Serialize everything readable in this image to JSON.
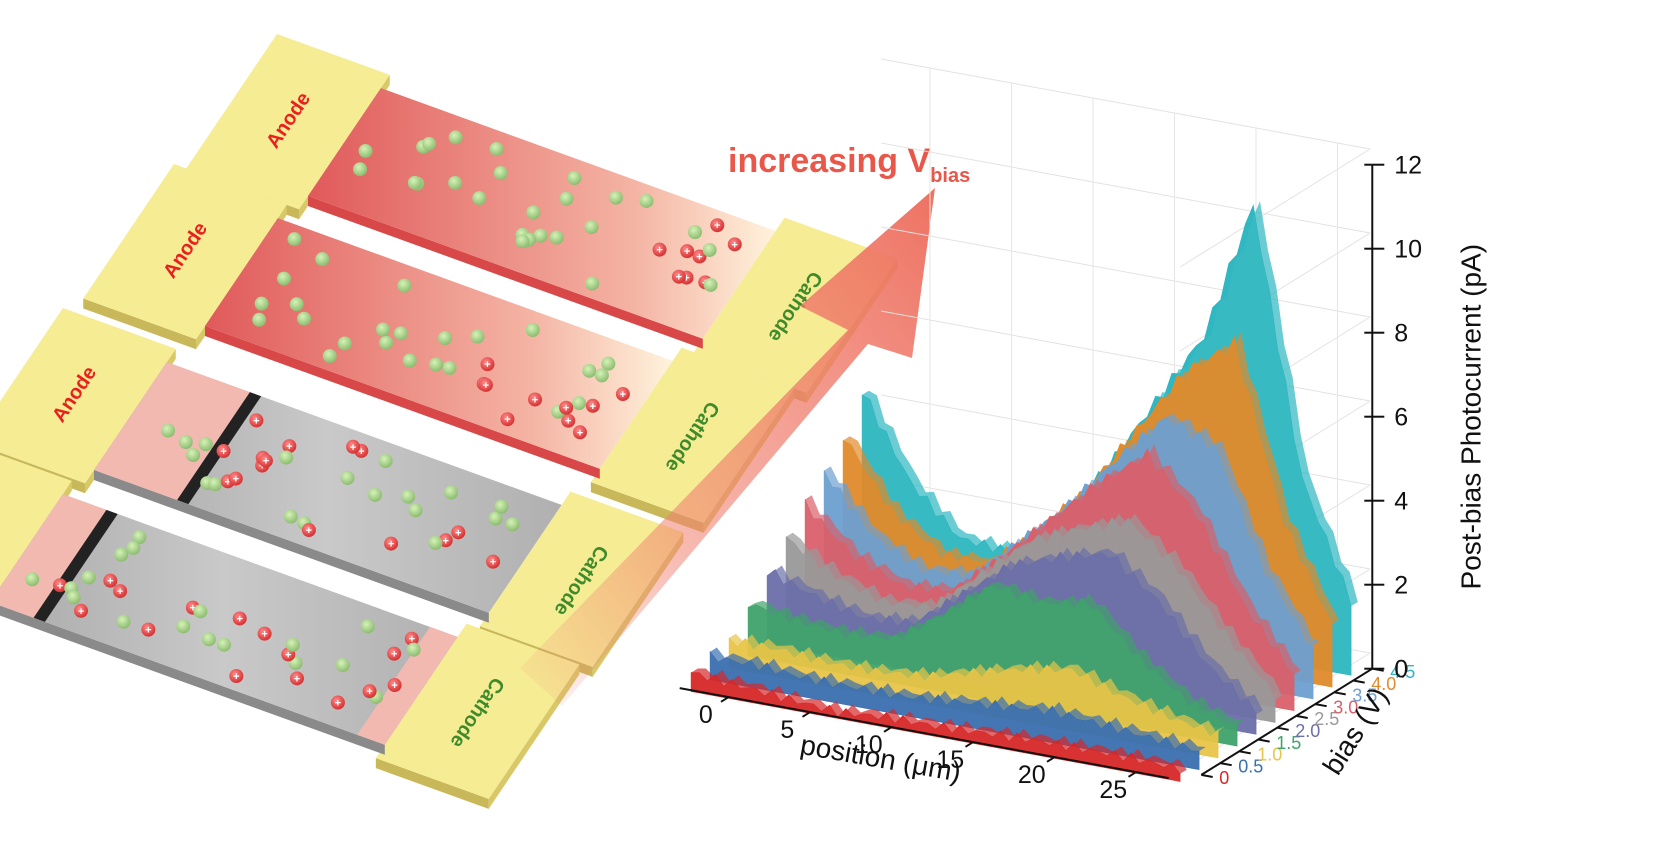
{
  "devices": [
    {
      "anode": "Anode",
      "cathode": "Cathode"
    },
    {
      "anode": "Anode",
      "cathode": "Cathode"
    },
    {
      "anode": "Anode",
      "cathode": "Cathode"
    },
    {
      "anode": "",
      "cathode": "Cathode"
    }
  ],
  "arrow": {
    "text": "increasing V",
    "subscript": "bias",
    "color": "#e8574a"
  },
  "chart_data": {
    "type": "area",
    "style": "3d-waterfall",
    "xlabel": "position (μm)",
    "ylabel": "bias (V)",
    "zlabel": "Post-bias Photocurrent (pA)",
    "x_ticks": [
      "0",
      "5",
      "10",
      "15",
      "20",
      "25"
    ],
    "z_ticks": [
      "0",
      "2",
      "4",
      "6",
      "8",
      "10",
      "12"
    ],
    "bias_ticks": [
      "0",
      "0.5",
      "1.0",
      "1.5",
      "2.0",
      "2.5",
      "3.0",
      "3.5",
      "4.0",
      "4.5"
    ],
    "xlim": [
      -3,
      27
    ],
    "zlim": [
      0,
      12
    ],
    "x": [
      -3,
      0,
      3,
      6,
      9,
      12,
      15,
      18,
      21,
      24,
      27
    ],
    "series": [
      {
        "name": "0",
        "color": "#d62728",
        "values": [
          0.2,
          0.1,
          0.0,
          -0.1,
          0.0,
          0.0,
          0.05,
          0.1,
          0.1,
          0.1,
          0.05
        ]
      },
      {
        "name": "0.5",
        "color": "#3a6fb0",
        "values": [
          0.3,
          0.3,
          0.2,
          0.2,
          0.2,
          0.3,
          0.4,
          0.5,
          0.4,
          0.3,
          0.2
        ]
      },
      {
        "name": "1.0",
        "color": "#e8c447",
        "values": [
          0.4,
          0.4,
          0.3,
          0.3,
          0.4,
          0.7,
          1.0,
          1.2,
          0.8,
          0.5,
          0.3
        ]
      },
      {
        "name": "1.5",
        "color": "#3fa36a",
        "values": [
          1.0,
          0.8,
          0.7,
          0.8,
          1.6,
          2.5,
          2.3,
          2.5,
          1.4,
          0.6,
          0.2
        ]
      },
      {
        "name": "2.0",
        "color": "#6b6fa8",
        "values": [
          1.5,
          1.1,
          0.8,
          0.9,
          1.8,
          2.7,
          3.1,
          3.4,
          2.5,
          1.2,
          0.3
        ]
      },
      {
        "name": "2.5",
        "color": "#999999",
        "values": [
          2.0,
          1.3,
          0.9,
          1.0,
          2.0,
          3.0,
          3.5,
          3.9,
          3.0,
          1.6,
          0.4
        ]
      },
      {
        "name": "3.0",
        "color": "#d9606a",
        "values": [
          2.5,
          1.5,
          1.0,
          1.1,
          2.1,
          3.2,
          4.3,
          5.2,
          4.0,
          2.0,
          0.6
        ]
      },
      {
        "name": "3.5",
        "color": "#6d9fd0",
        "values": [
          3.0,
          1.7,
          1.1,
          1.2,
          2.2,
          3.3,
          4.6,
          5.8,
          5.3,
          2.6,
          0.9
        ]
      },
      {
        "name": "4.0",
        "color": "#e08a2a",
        "values": [
          3.6,
          2.0,
          1.2,
          1.2,
          2.2,
          3.4,
          5.0,
          6.6,
          7.5,
          3.5,
          1.2
        ]
      },
      {
        "name": "4.5",
        "color": "#2db6c0",
        "values": [
          4.4,
          2.4,
          1.3,
          1.2,
          2.2,
          3.6,
          5.4,
          7.2,
          10.5,
          4.2,
          1.5
        ]
      }
    ]
  }
}
